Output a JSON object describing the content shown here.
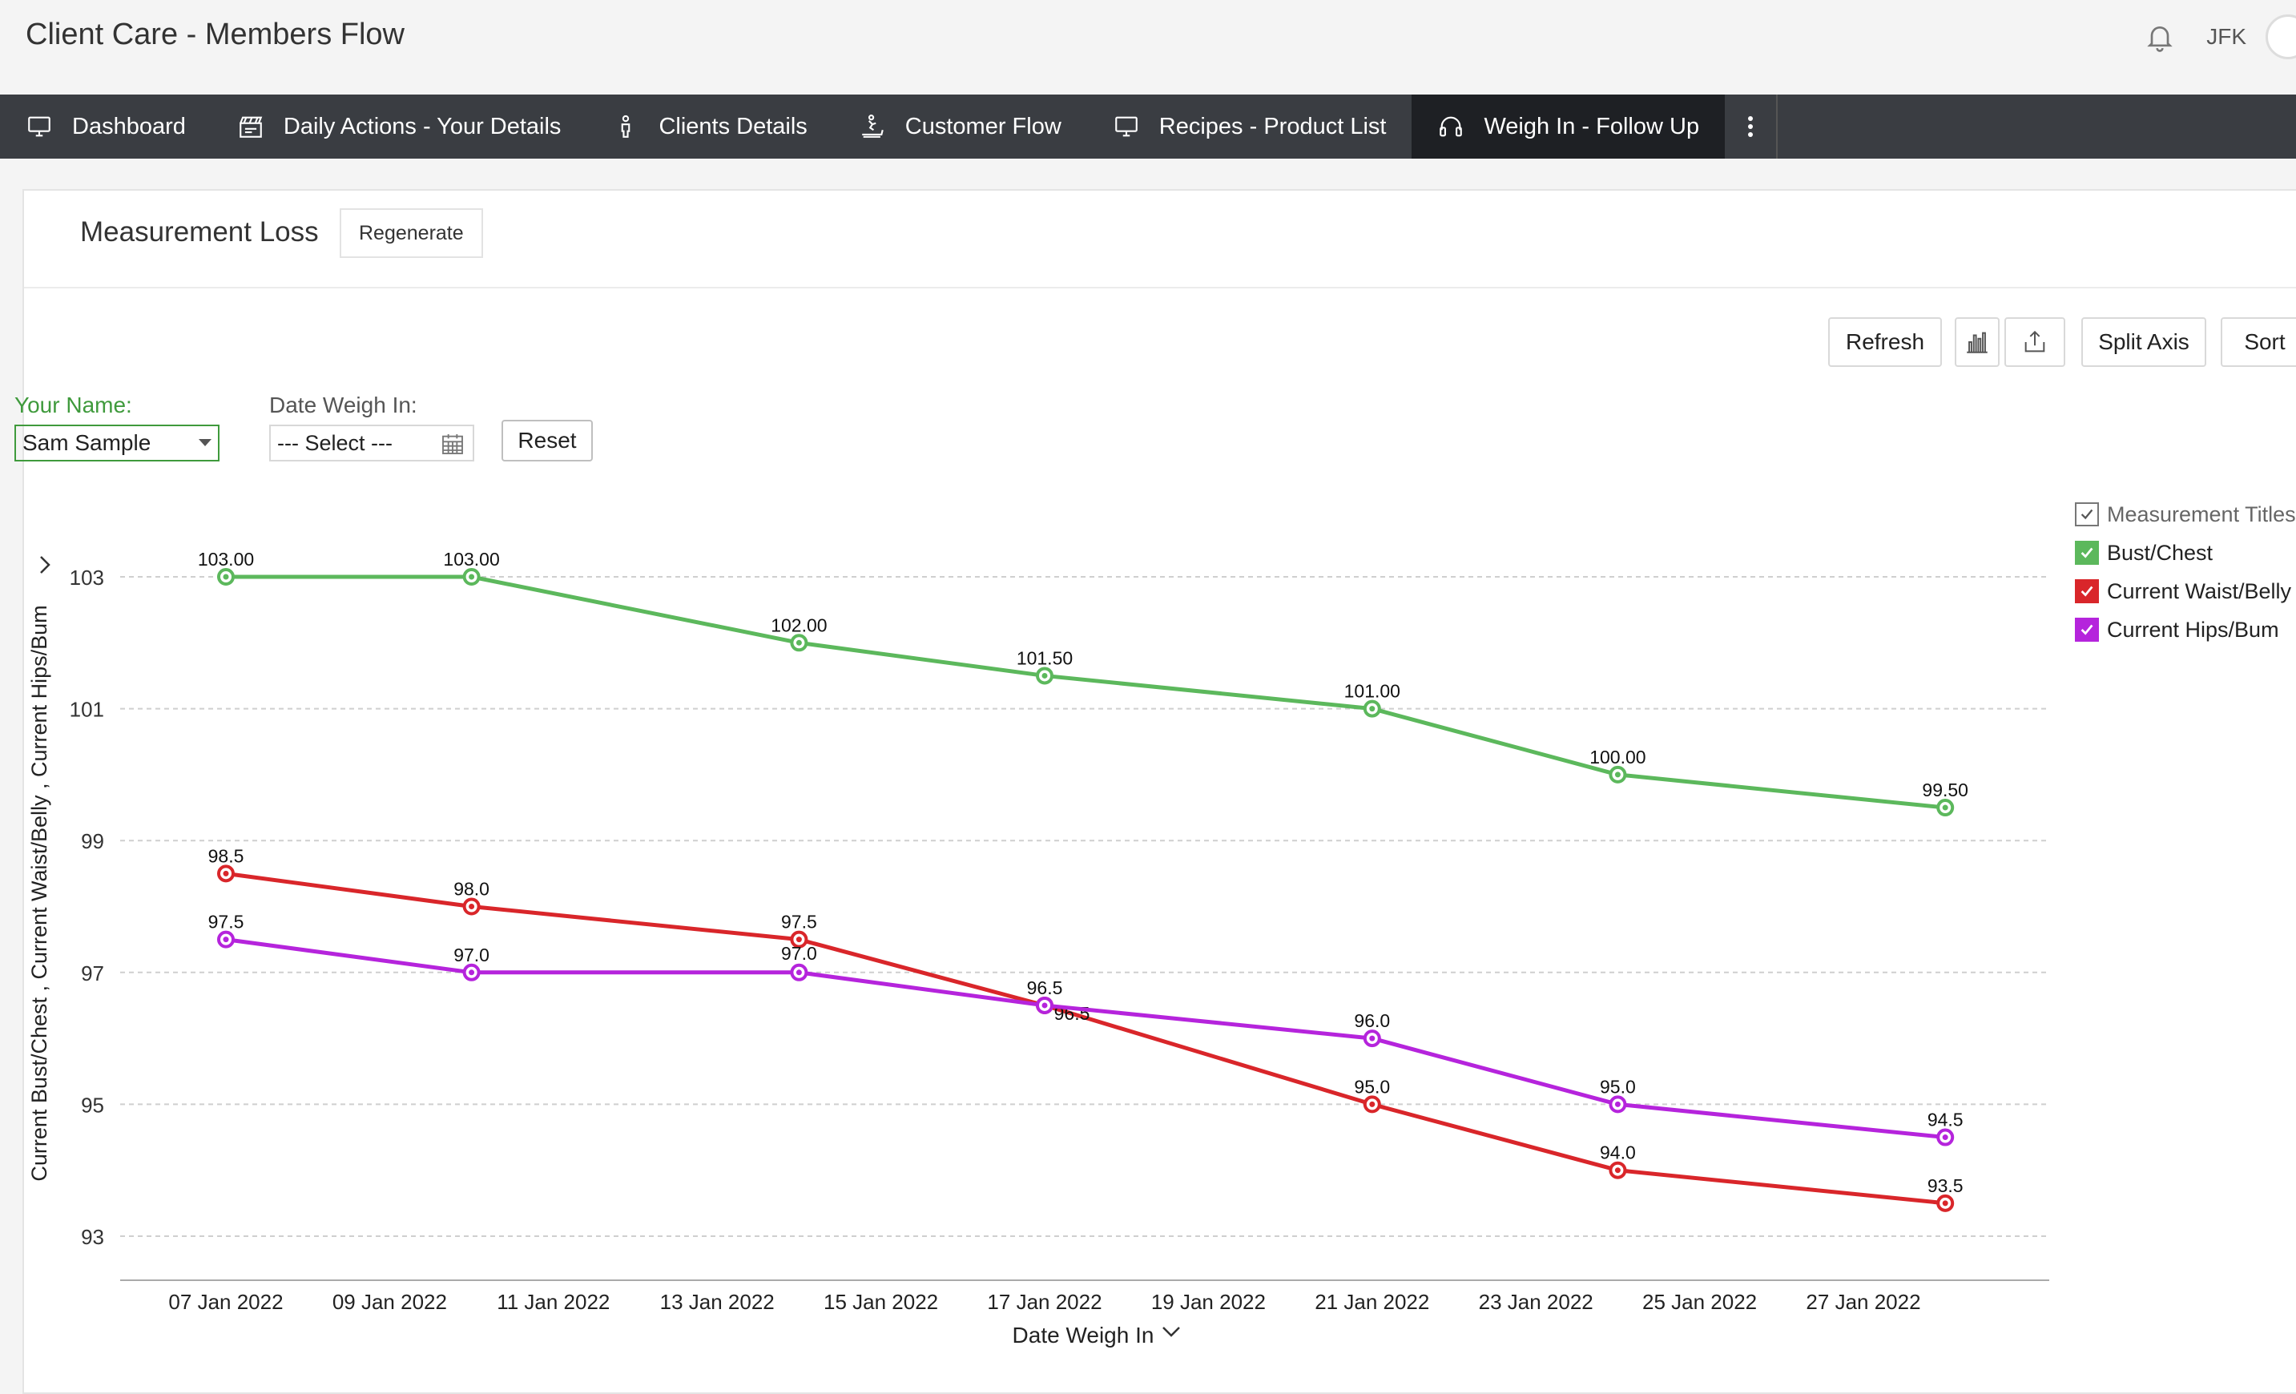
{
  "header": {
    "title": "Client Care - Members Flow",
    "user_initials": "JFK"
  },
  "nav": {
    "items": [
      {
        "label": "Dashboard",
        "icon": "monitor-icon"
      },
      {
        "label": "Daily Actions - Your Details",
        "icon": "clapperboard-icon"
      },
      {
        "label": "Clients Details",
        "icon": "person-icon"
      },
      {
        "label": "Customer Flow",
        "icon": "treadmill-icon"
      },
      {
        "label": "Recipes - Product List",
        "icon": "monitor-icon"
      },
      {
        "label": "Weigh In - Follow Up",
        "icon": "headset-icon"
      }
    ],
    "active_index": 5
  },
  "report": {
    "title": "Measurement Loss",
    "regenerate_label": "Regenerate",
    "refresh_label": "Refresh",
    "split_axis_label": "Split Axis",
    "sort_label": "Sort"
  },
  "filters": {
    "name_label": "Your Name:",
    "name_value": "Sam Sample",
    "date_label": "Date Weigh In:",
    "date_placeholder": "--- Select ---",
    "reset_label": "Reset"
  },
  "colors": {
    "green": "#5cb85c",
    "red": "#d9262a",
    "purple": "#b524dc",
    "accent_green": "#3f9a3c"
  },
  "chart_data": {
    "type": "line",
    "xlabel": "Date Weigh In",
    "ylabel": "Current Bust/Chest , Current Waist/Belly , Current Hips/Bum",
    "ylim": [
      92.5,
      104
    ],
    "y_ticks": [
      "93",
      "95",
      "97",
      "99",
      "101",
      "103"
    ],
    "x_ticks": [
      "07 Jan 2022",
      "09 Jan 2022",
      "11 Jan 2022",
      "13 Jan 2022",
      "15 Jan 2022",
      "17 Jan 2022",
      "19 Jan 2022",
      "21 Jan 2022",
      "23 Jan 2022",
      "25 Jan 2022",
      "27 Jan 2022"
    ],
    "x": [
      "2022-01-07",
      "2022-01-10",
      "2022-01-14",
      "2022-01-17",
      "2022-01-21",
      "2022-01-24",
      "2022-01-28"
    ],
    "legend_title": "Measurement Titles",
    "legend_position": "right",
    "grid": true,
    "series": [
      {
        "name": "Bust/Chest",
        "color": "#5cb85c",
        "values": [
          103,
          103,
          102,
          101.5,
          101,
          100,
          99.5
        ],
        "labels": [
          "103.00",
          "103.00",
          "102.00",
          "101.50",
          "101.00",
          "100.00",
          "99.50"
        ]
      },
      {
        "name": "Current Waist/Belly",
        "color": "#d9262a",
        "values": [
          98.5,
          98,
          97.5,
          96.5,
          95,
          94,
          93.5
        ],
        "labels": [
          "98.5",
          "98.0",
          "97.5",
          "96.5",
          "95.0",
          "94.0",
          "93.5"
        ]
      },
      {
        "name": "Current Hips/Bum",
        "color": "#b524dc",
        "values": [
          97.5,
          97,
          97,
          96.5,
          96,
          95,
          94.5
        ],
        "labels": [
          "97.5",
          "97.0",
          "97.0",
          "96.5",
          "96.0",
          "95.0",
          "94.5"
        ]
      }
    ]
  }
}
